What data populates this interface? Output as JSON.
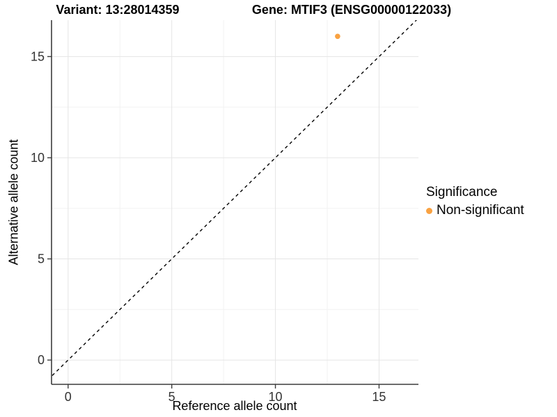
{
  "chart_data": {
    "type": "scatter",
    "title_left": "Variant: 13:28014359",
    "title_right": "Gene: MTIF3 (ENSG00000122033)",
    "xlabel": "Reference allele count",
    "ylabel": "Alternative allele count",
    "xlim": [
      -0.8,
      16.9
    ],
    "ylim": [
      -1.2,
      16.8
    ],
    "xticks": [
      0,
      5,
      10,
      15
    ],
    "yticks": [
      0,
      5,
      10,
      15
    ],
    "xminor": [
      2.5,
      7.5,
      12.5
    ],
    "yminor": [
      2.5,
      7.5,
      12.5
    ],
    "grid": "major and minor gridlines on white panel",
    "points": [
      {
        "x": 13,
        "y": 16,
        "series": "Non-significant"
      }
    ],
    "identity_line": {
      "slope": 1,
      "intercept": 0,
      "style": "dashed",
      "color": "#000000"
    },
    "legend": {
      "title": "Significance",
      "position": "right",
      "entries": [
        {
          "label": "Non-significant",
          "color": "#F9A242"
        }
      ]
    },
    "colors": {
      "point": "#F9A242",
      "axis_line": "#3C3C3C",
      "grid_major": "#E5E5E5",
      "grid_minor": "#F2F2F2",
      "tick_text": "#333333",
      "text": "#000000"
    },
    "point_radius_px": 3.8
  }
}
